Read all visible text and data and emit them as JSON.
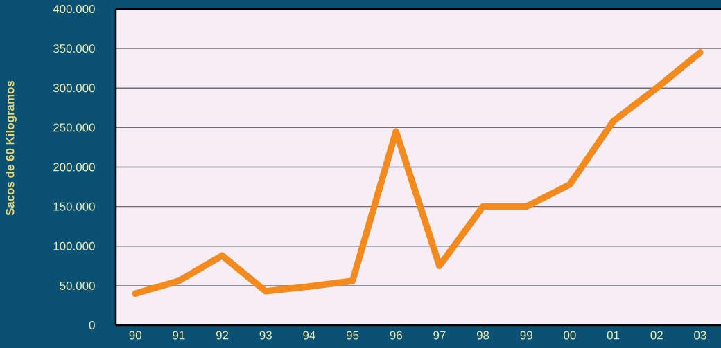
{
  "chart_data": {
    "type": "line",
    "ylabel": "Sacos de 60 Kilogramos",
    "categories": [
      "90",
      "91",
      "92",
      "93",
      "94",
      "95",
      "96",
      "97",
      "98",
      "99",
      "00",
      "01",
      "02",
      "03"
    ],
    "series": [
      {
        "color": "#f28a1e",
        "values": [
          40000,
          56000,
          88000,
          43000,
          49000,
          56000,
          245000,
          75000,
          150000,
          150000,
          178000,
          258000,
          300000,
          345000
        ]
      }
    ],
    "ylim": [
      0,
      400000
    ],
    "yticks": [
      0,
      {
        "value": 50000,
        "label": "50.000"
      },
      {
        "value": 100000,
        "label": "100.000"
      },
      {
        "value": 150000,
        "label": "150.000"
      },
      {
        "value": 200000,
        "label": "200.000"
      },
      {
        "value": 250000,
        "label": "250.000"
      },
      {
        "value": 300000,
        "label": "300.000"
      },
      {
        "value": 350000,
        "label": "350.000"
      },
      {
        "value": 400000,
        "label": "400.000"
      }
    ],
    "grid": "y",
    "line_style": "solid"
  }
}
